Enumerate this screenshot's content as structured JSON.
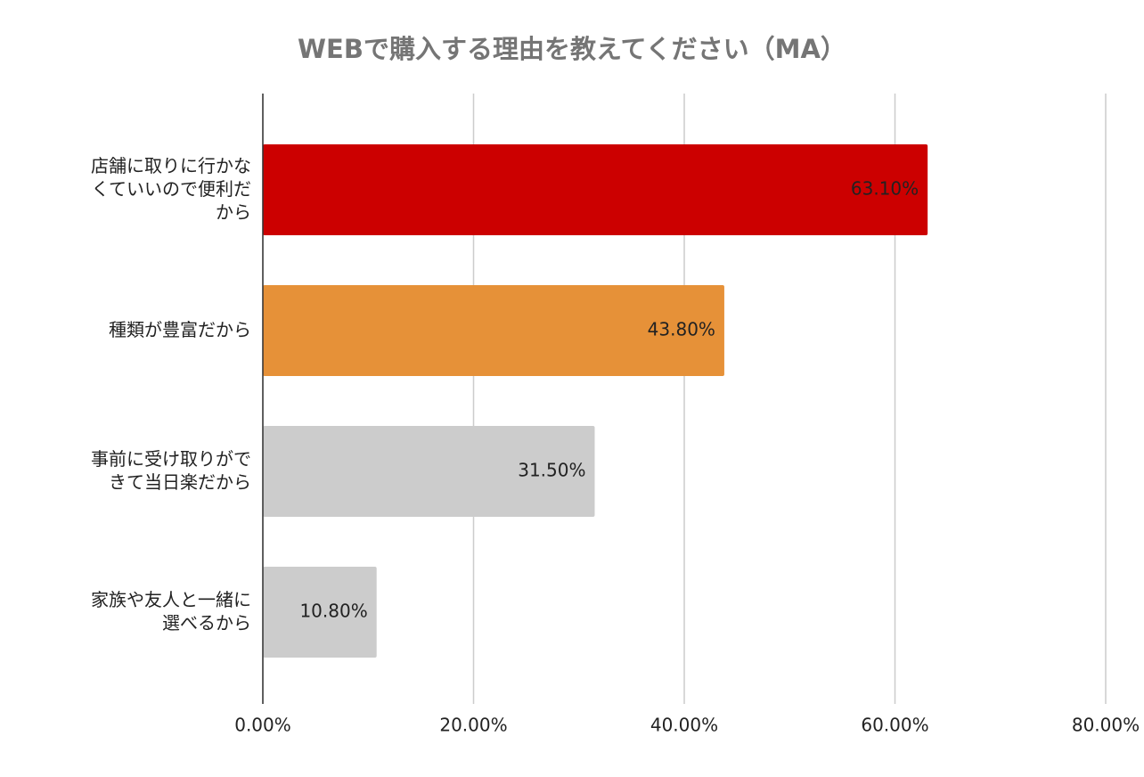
{
  "chart_data": {
    "type": "hbar",
    "title": "WEBで購入する理由を教えてください（MA）",
    "categories": [
      "店舗に取りに行かなくていいので便利だから",
      "種類が豊富だから",
      "事前に受け取りができて当日楽だから",
      "家族や友人と一緒に選べるから"
    ],
    "values": [
      63.1,
      43.8,
      31.5,
      10.8
    ],
    "value_labels": [
      "63.10%",
      "43.80%",
      "31.50%",
      "10.80%"
    ],
    "colors": [
      "#cc0000",
      "#e69138",
      "#cccccc",
      "#cccccc"
    ],
    "xlim": [
      0,
      80
    ],
    "xticks": [
      {
        "value": 0,
        "label": "0.00%"
      },
      {
        "value": 20,
        "label": "20.00%"
      },
      {
        "value": 40,
        "label": "40.00%"
      },
      {
        "value": 60,
        "label": "60.00%"
      },
      {
        "value": 80,
        "label": "80.00%"
      }
    ],
    "grid": true
  }
}
